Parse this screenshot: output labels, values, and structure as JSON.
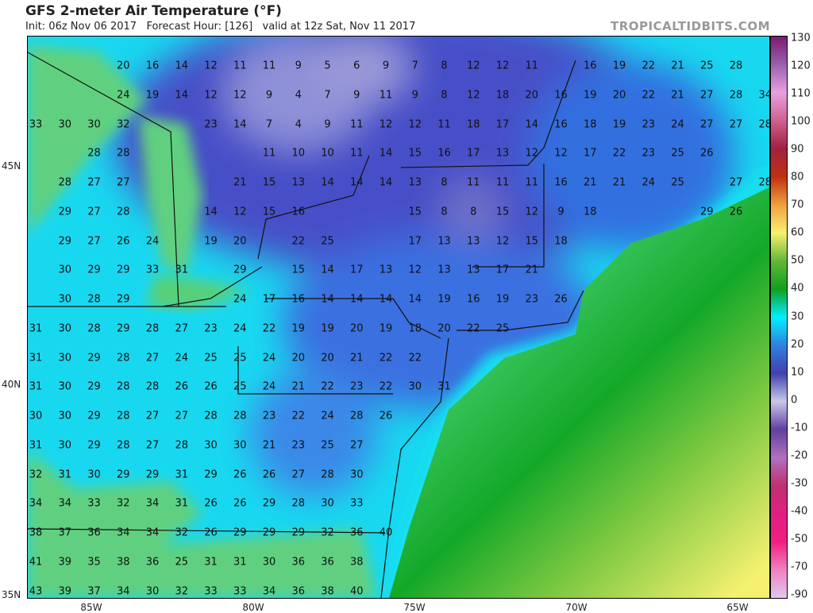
{
  "header": {
    "title": "GFS 2-meter Air Temperature (°F)",
    "subtitle": "Init: 06z Nov 06 2017   Forecast Hour: [126]   valid at 12z Sat, Nov 11 2017",
    "brand": "TROPICALTIDBITS.COM"
  },
  "colorbar": {
    "labels": [
      "130",
      "120",
      "110",
      "100",
      "90",
      "80",
      "70",
      "60",
      "50",
      "40",
      "30",
      "20",
      "10",
      "0",
      "-10",
      "-20",
      "-30",
      "-40",
      "-50",
      "-70",
      "-90"
    ],
    "colors": [
      "#7a1a6e",
      "#9a60b0",
      "#e8a0e0",
      "#d06090",
      "#a02040",
      "#c03010",
      "#f0a040",
      "#f8f070",
      "#60b838",
      "#10a020",
      "#00f0ff",
      "#3080e0",
      "#4040b0",
      "#c8c8e8",
      "#6040a0",
      "#b070c0",
      "#c03070",
      "#e02080",
      "#f02080",
      "#f080c0",
      "#e0c8f0"
    ]
  },
  "axes": {
    "lat": [
      "45N",
      "40N",
      "35N"
    ],
    "lon": [
      "85W",
      "80W",
      "75W",
      "70W",
      "65W"
    ]
  },
  "temperatures": [
    [
      null,
      null,
      null,
      20,
      16,
      14,
      12,
      11,
      11,
      9,
      5,
      6,
      9,
      7,
      8,
      12,
      12,
      11,
      null,
      16,
      19,
      22,
      21,
      25,
      28,
      null
    ],
    [
      null,
      null,
      null,
      24,
      19,
      14,
      12,
      12,
      9,
      4,
      7,
      9,
      11,
      9,
      8,
      12,
      18,
      20,
      16,
      19,
      20,
      22,
      21,
      27,
      28,
      34
    ],
    [
      33,
      30,
      30,
      32,
      null,
      null,
      23,
      14,
      7,
      4,
      9,
      11,
      12,
      12,
      11,
      18,
      17,
      14,
      16,
      18,
      19,
      23,
      24,
      27,
      27,
      28
    ],
    [
      null,
      null,
      28,
      28,
      null,
      null,
      null,
      null,
      11,
      10,
      10,
      11,
      14,
      15,
      16,
      17,
      13,
      12,
      12,
      17,
      22,
      23,
      25,
      26,
      null,
      null
    ],
    [
      null,
      28,
      27,
      27,
      null,
      null,
      null,
      21,
      15,
      13,
      14,
      14,
      14,
      13,
      8,
      11,
      11,
      11,
      16,
      21,
      21,
      24,
      25,
      null,
      27,
      28
    ],
    [
      null,
      29,
      27,
      28,
      null,
      null,
      14,
      12,
      15,
      16,
      null,
      null,
      null,
      15,
      8,
      8,
      15,
      12,
      9,
      18,
      null,
      null,
      null,
      29,
      26,
      null
    ],
    [
      null,
      29,
      27,
      26,
      24,
      null,
      19,
      20,
      null,
      22,
      25,
      null,
      null,
      17,
      13,
      13,
      12,
      15,
      18,
      null,
      null,
      null,
      null,
      null,
      null,
      null
    ],
    [
      null,
      30,
      29,
      29,
      33,
      31,
      null,
      29,
      null,
      15,
      14,
      17,
      13,
      12,
      13,
      13,
      17,
      21,
      null,
      null,
      null,
      null,
      null,
      null,
      null,
      null
    ],
    [
      null,
      30,
      28,
      29,
      null,
      null,
      null,
      24,
      17,
      16,
      14,
      14,
      14,
      14,
      19,
      16,
      19,
      23,
      26,
      null,
      null,
      null,
      null,
      null,
      null,
      null
    ],
    [
      31,
      30,
      28,
      29,
      28,
      27,
      23,
      24,
      22,
      19,
      19,
      20,
      19,
      18,
      20,
      22,
      25,
      null,
      null,
      null,
      null,
      null,
      null,
      null,
      null,
      null
    ],
    [
      31,
      30,
      29,
      28,
      27,
      24,
      25,
      25,
      24,
      20,
      20,
      21,
      22,
      22,
      null,
      null,
      null,
      null,
      null,
      null,
      null,
      null,
      null,
      null,
      null,
      null
    ],
    [
      31,
      30,
      29,
      28,
      28,
      26,
      26,
      25,
      24,
      21,
      22,
      23,
      22,
      30,
      31,
      null,
      null,
      null,
      null,
      null,
      null,
      null,
      null,
      null,
      null,
      null
    ],
    [
      30,
      30,
      29,
      28,
      27,
      27,
      28,
      28,
      23,
      22,
      24,
      28,
      26,
      null,
      null,
      null,
      null,
      null,
      null,
      null,
      null,
      null,
      null,
      null,
      null,
      null
    ],
    [
      31,
      30,
      29,
      28,
      27,
      28,
      30,
      30,
      21,
      23,
      25,
      27,
      null,
      null,
      null,
      null,
      null,
      null,
      null,
      null,
      null,
      null,
      null,
      null,
      null,
      null
    ],
    [
      32,
      31,
      30,
      29,
      29,
      31,
      29,
      26,
      26,
      27,
      28,
      30,
      null,
      null,
      null,
      null,
      null,
      null,
      null,
      null,
      null,
      null,
      null,
      null,
      null,
      null
    ],
    [
      34,
      34,
      33,
      32,
      34,
      31,
      26,
      26,
      29,
      28,
      30,
      33,
      null,
      null,
      null,
      null,
      null,
      null,
      null,
      null,
      null,
      null,
      null,
      null,
      null,
      null
    ],
    [
      38,
      37,
      36,
      34,
      34,
      32,
      26,
      29,
      29,
      29,
      32,
      36,
      40,
      null,
      null,
      null,
      null,
      null,
      null,
      null,
      null,
      null,
      null,
      null,
      null,
      null
    ],
    [
      41,
      39,
      35,
      38,
      36,
      25,
      31,
      31,
      30,
      36,
      36,
      38,
      null,
      null,
      null,
      null,
      null,
      null,
      null,
      null,
      null,
      null,
      null,
      null,
      null,
      null
    ],
    [
      43,
      39,
      37,
      34,
      30,
      32,
      33,
      33,
      34,
      36,
      38,
      40,
      null,
      null,
      null,
      null,
      null,
      null,
      null,
      null,
      null,
      null,
      null,
      null,
      null,
      null
    ]
  ]
}
